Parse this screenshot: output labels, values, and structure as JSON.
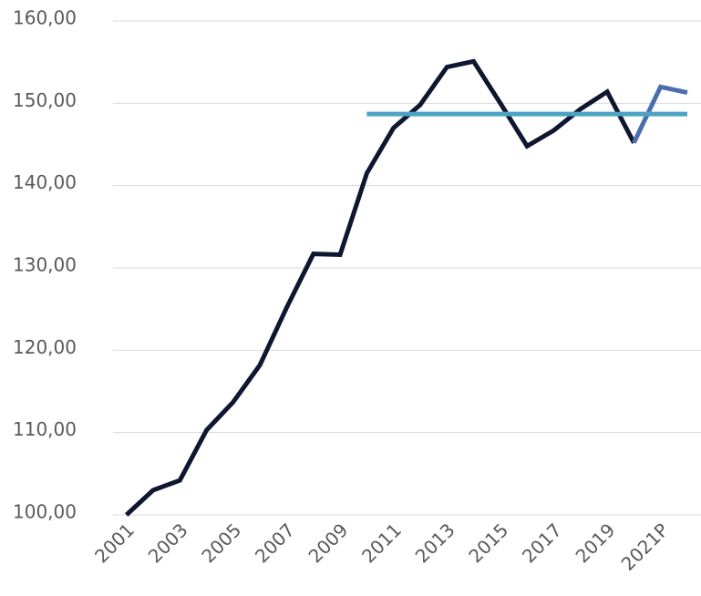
{
  "chart_data": {
    "type": "line",
    "categories": [
      "2001",
      null,
      "2003",
      null,
      "2005",
      null,
      "2007",
      null,
      "2009",
      null,
      "2011",
      null,
      "2013",
      null,
      "2015",
      null,
      "2017",
      null,
      "2019",
      null,
      "2021P",
      null
    ],
    "series": [
      {
        "color": "#0e1630",
        "values": [
          100,
          103.0,
          104.2,
          110.3,
          113.7,
          118.2,
          125.2,
          131.7,
          131.6,
          141.5,
          147.0,
          149.8,
          154.4,
          155.1,
          150.0,
          144.8,
          146.7,
          149.3,
          151.4,
          145.2,
          null,
          null
        ]
      },
      {
        "color": "#4a6fb0",
        "values": [
          null,
          null,
          null,
          null,
          null,
          null,
          null,
          null,
          null,
          null,
          null,
          null,
          null,
          null,
          null,
          null,
          null,
          null,
          null,
          145.2,
          152.0,
          151.3
        ]
      },
      {
        "color": "#4ba3c3",
        "values": [
          null,
          null,
          null,
          null,
          null,
          null,
          null,
          null,
          null,
          148.7,
          148.7,
          148.7,
          148.7,
          148.7,
          148.7,
          148.7,
          148.7,
          148.7,
          148.7,
          148.7,
          148.7,
          148.7
        ]
      }
    ],
    "ylim": [
      100,
      160
    ],
    "yticks": [
      {
        "value": 100,
        "label": "100,00"
      },
      {
        "value": 110,
        "label": "110,00"
      },
      {
        "value": 120,
        "label": "120,00"
      },
      {
        "value": 130,
        "label": "130,00"
      },
      {
        "value": 140,
        "label": "140,00"
      },
      {
        "value": 150,
        "label": "150,00"
      },
      {
        "value": 160,
        "label": "160,00"
      }
    ],
    "grid": true
  }
}
